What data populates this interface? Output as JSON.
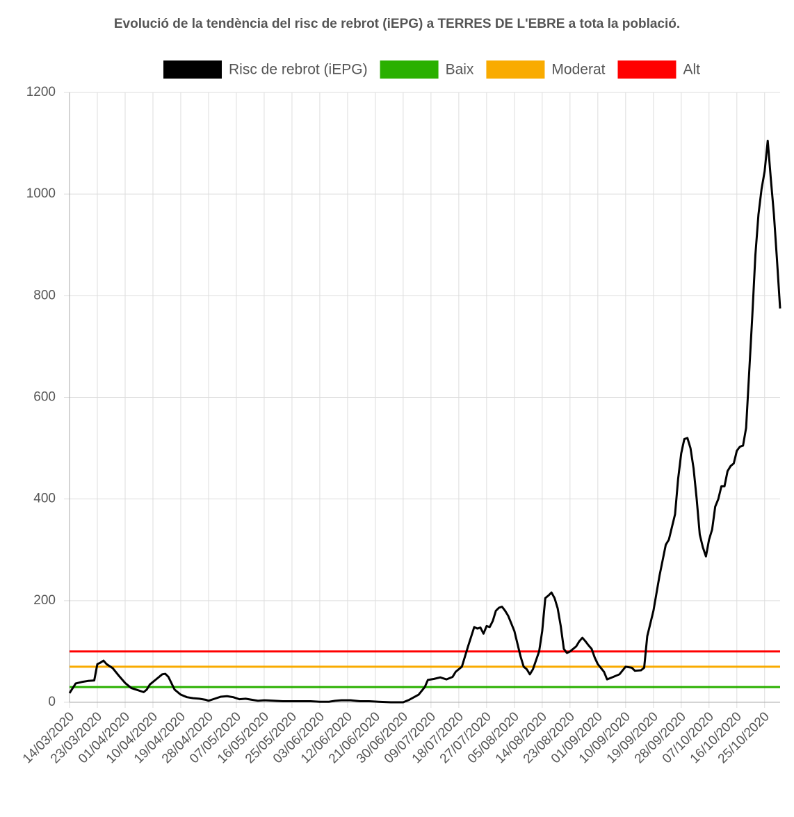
{
  "chart_data": {
    "type": "line",
    "title": "Evolució de la tendència del risc de rebrot (iEPG) a TERRES DE L'EBRE a tota la població.",
    "ylim": [
      0,
      1200
    ],
    "yticks": [
      0,
      200,
      400,
      600,
      800,
      1000,
      1200
    ],
    "grid": true,
    "xlim": [
      "14/03/2020",
      "30/10/2020"
    ],
    "xticks": [
      "14/03/2020",
      "23/03/2020",
      "01/04/2020",
      "10/04/2020",
      "19/04/2020",
      "28/04/2020",
      "07/05/2020",
      "16/05/2020",
      "25/05/2020",
      "03/06/2020",
      "12/06/2020",
      "21/06/2020",
      "30/06/2020",
      "09/07/2020",
      "18/07/2020",
      "27/07/2020",
      "05/08/2020",
      "14/08/2020",
      "23/08/2020",
      "01/09/2020",
      "10/09/2020",
      "19/09/2020",
      "28/09/2020",
      "07/10/2020",
      "16/10/2020",
      "25/10/2020"
    ],
    "legend": "top",
    "series": [
      {
        "name": "Risc de rebrot (iEPG)",
        "color": "#000000",
        "x": [
          "14/03/2020",
          "16/03/2020",
          "18/03/2020",
          "20/03/2020",
          "22/03/2020",
          "23/03/2020",
          "24/03/2020",
          "25/03/2020",
          "26/03/2020",
          "28/03/2020",
          "30/03/2020",
          "01/04/2020",
          "03/04/2020",
          "05/04/2020",
          "07/04/2020",
          "08/04/2020",
          "09/04/2020",
          "11/04/2020",
          "13/04/2020",
          "14/04/2020",
          "15/04/2020",
          "17/04/2020",
          "19/04/2020",
          "21/04/2020",
          "23/04/2020",
          "25/04/2020",
          "27/04/2020",
          "28/04/2020",
          "30/04/2020",
          "02/05/2020",
          "04/05/2020",
          "06/05/2020",
          "08/05/2020",
          "10/05/2020",
          "12/05/2020",
          "14/05/2020",
          "16/05/2020",
          "19/05/2020",
          "22/05/2020",
          "25/05/2020",
          "28/05/2020",
          "31/05/2020",
          "03/06/2020",
          "06/06/2020",
          "08/06/2020",
          "10/06/2020",
          "13/06/2020",
          "16/06/2020",
          "19/06/2020",
          "22/06/2020",
          "26/06/2020",
          "30/06/2020",
          "02/07/2020",
          "05/07/2020",
          "07/07/2020",
          "08/07/2020",
          "10/07/2020",
          "12/07/2020",
          "14/07/2020",
          "16/07/2020",
          "17/07/2020",
          "19/07/2020",
          "21/07/2020",
          "23/07/2020",
          "24/07/2020",
          "25/07/2020",
          "26/07/2020",
          "27/07/2020",
          "28/07/2020",
          "29/07/2020",
          "30/07/2020",
          "31/07/2020",
          "01/08/2020",
          "02/08/2020",
          "03/08/2020",
          "05/08/2020",
          "07/08/2020",
          "08/08/2020",
          "09/08/2020",
          "10/08/2020",
          "11/08/2020",
          "13/08/2020",
          "14/08/2020",
          "15/08/2020",
          "16/08/2020",
          "17/08/2020",
          "18/08/2020",
          "19/08/2020",
          "20/08/2020",
          "21/08/2020",
          "22/08/2020",
          "23/08/2020",
          "25/08/2020",
          "26/08/2020",
          "27/08/2020",
          "28/08/2020",
          "29/08/2020",
          "30/08/2020",
          "31/08/2020",
          "01/09/2020",
          "03/09/2020",
          "04/09/2020",
          "06/09/2020",
          "08/09/2020",
          "10/09/2020",
          "12/09/2020",
          "13/09/2020",
          "15/09/2020",
          "16/09/2020",
          "17/09/2020",
          "19/09/2020",
          "21/09/2020",
          "22/09/2020",
          "23/09/2020",
          "24/09/2020",
          "26/09/2020",
          "27/09/2020",
          "28/09/2020",
          "29/09/2020",
          "30/09/2020",
          "01/10/2020",
          "02/10/2020",
          "03/10/2020",
          "04/10/2020",
          "05/10/2020",
          "06/10/2020",
          "07/10/2020",
          "08/10/2020",
          "09/10/2020",
          "10/10/2020",
          "11/10/2020",
          "12/10/2020",
          "13/10/2020",
          "14/10/2020",
          "15/10/2020",
          "16/10/2020",
          "17/10/2020",
          "18/10/2020",
          "19/10/2020",
          "20/10/2020",
          "21/10/2020",
          "22/10/2020",
          "23/10/2020",
          "24/10/2020",
          "25/10/2020",
          "26/10/2020",
          "27/10/2020",
          "28/10/2020",
          "29/10/2020",
          "30/10/2020"
        ],
        "values": [
          18,
          37,
          40,
          42,
          43,
          75,
          78,
          82,
          75,
          67,
          52,
          38,
          28,
          24,
          20,
          25,
          35,
          45,
          55,
          56,
          50,
          25,
          15,
          10,
          8,
          7,
          5,
          3,
          7,
          11,
          12,
          10,
          6,
          7,
          5,
          3,
          4,
          3,
          2,
          2,
          2,
          2,
          1,
          1,
          3,
          4,
          4,
          2,
          2,
          1,
          0,
          0,
          5,
          15,
          30,
          44,
          46,
          49,
          45,
          50,
          60,
          70,
          110,
          148,
          145,
          147,
          135,
          150,
          148,
          160,
          180,
          186,
          188,
          180,
          170,
          140,
          90,
          70,
          65,
          55,
          65,
          100,
          140,
          205,
          210,
          216,
          205,
          185,
          150,
          105,
          97,
          100,
          110,
          120,
          127,
          120,
          112,
          105,
          88,
          75,
          60,
          45,
          50,
          55,
          70,
          68,
          62,
          63,
          68,
          130,
          180,
          250,
          280,
          310,
          320,
          370,
          440,
          490,
          518,
          520,
          500,
          460,
          400,
          330,
          305,
          287,
          320,
          340,
          385,
          400,
          425,
          425,
          455,
          465,
          470,
          495,
          503,
          505,
          540,
          650,
          760,
          880,
          960,
          1010,
          1045,
          1105,
          1030,
          960,
          870,
          775
        ]
      },
      {
        "name": "Baix",
        "color": "#2ab000",
        "x": [
          "14/03/2020",
          "30/10/2020"
        ],
        "values": [
          30,
          30
        ]
      },
      {
        "name": "Moderat",
        "color": "#f9ab00",
        "x": [
          "14/03/2020",
          "30/10/2020"
        ],
        "values": [
          70,
          70
        ]
      },
      {
        "name": "Alt",
        "color": "#ff0000",
        "x": [
          "14/03/2020",
          "30/10/2020"
        ],
        "values": [
          100,
          100
        ]
      }
    ]
  }
}
